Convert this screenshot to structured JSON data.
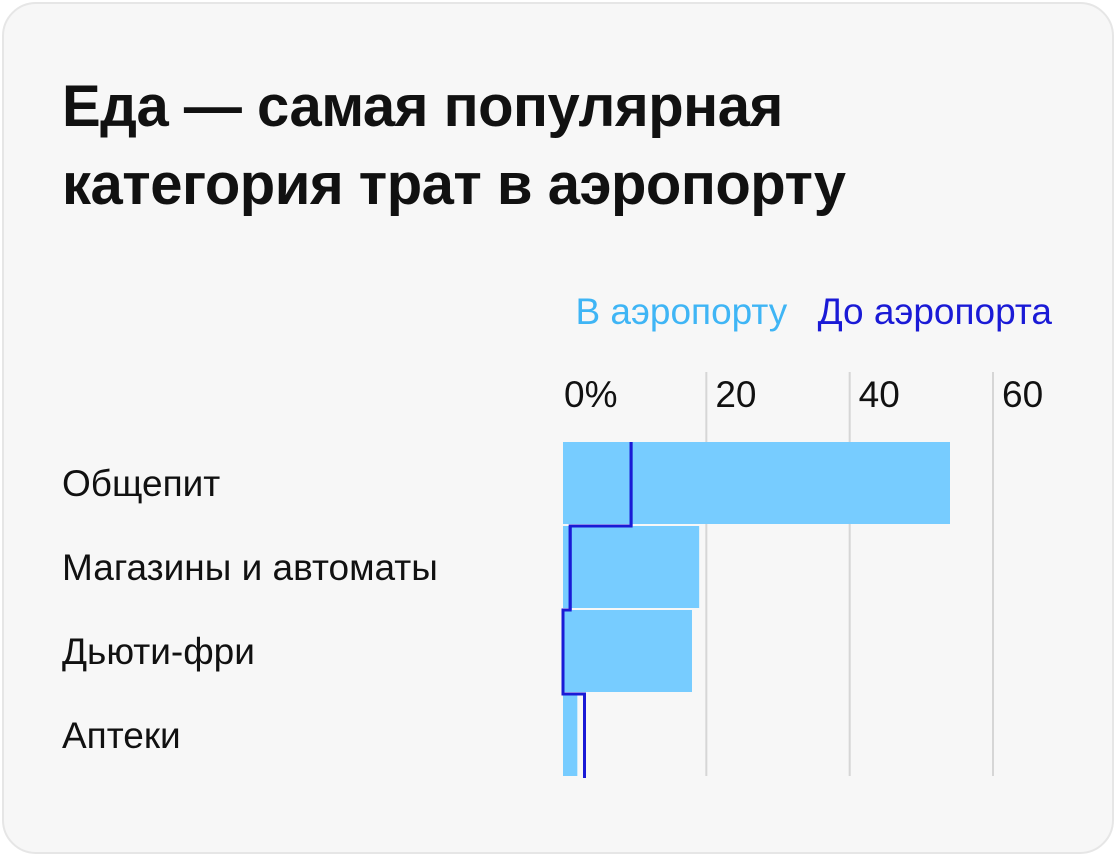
{
  "title": "Еда — самая популярная категория трат в аэропорту",
  "chart_data": {
    "type": "bar",
    "orientation": "horizontal",
    "categories": [
      "Общепит",
      "Магазины и автоматы",
      "Дьюти-фри",
      "Аптеки"
    ],
    "series": [
      {
        "name": "В аэропорту",
        "values": [
          54,
          19,
          18,
          2
        ],
        "color": "#77ccff"
      },
      {
        "name": "До аэропорта",
        "values": [
          9.5,
          1,
          0,
          3
        ],
        "color": "#1a1ad6"
      }
    ],
    "xlim": [
      0,
      60
    ],
    "xticks": [
      0,
      20,
      40,
      60
    ],
    "tick_labels": [
      "0%",
      "20",
      "40",
      "60"
    ],
    "legend": [
      "В аэропорту",
      "До аэропорта"
    ],
    "legend_position": "top-right",
    "grid": true
  }
}
